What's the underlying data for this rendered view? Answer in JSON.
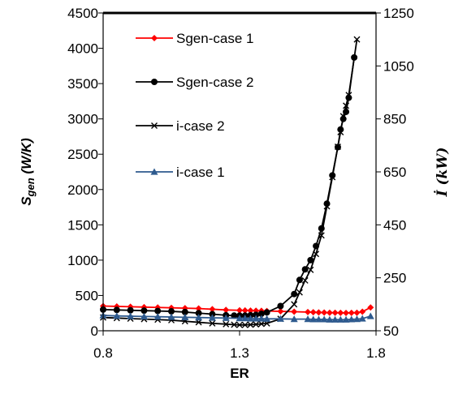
{
  "chart_data": {
    "type": "line",
    "x_axis": {
      "title": "ER",
      "range": [
        0.8,
        1.8
      ],
      "ticks": [
        0.8,
        1.3,
        1.8
      ],
      "tick_labels": [
        "0.8",
        "1.3",
        "1.8"
      ]
    },
    "y_axis_left": {
      "title_main": "S",
      "title_sub": "gen",
      "title_rest": " (W/K)",
      "range": [
        0,
        4500
      ],
      "ticks": [
        0,
        500,
        1000,
        1500,
        2000,
        2500,
        3000,
        3500,
        4000,
        4500
      ],
      "tick_labels": [
        "0",
        "500",
        "1000",
        "1500",
        "2000",
        "2500",
        "3000",
        "3500",
        "4000",
        "4500"
      ]
    },
    "y_axis_right": {
      "title_main": "İ",
      "title_rest": " (kW)",
      "range": [
        50,
        1250
      ],
      "ticks": [
        50,
        250,
        450,
        650,
        850,
        1050,
        1250
      ],
      "tick_labels": [
        "50",
        "250",
        "450",
        "650",
        "850",
        "1050",
        "1250"
      ]
    },
    "grid": false,
    "legend_position": "top-left inside",
    "series": [
      {
        "name": "Sgen-case 1",
        "axis": "left",
        "color": "#ff0000",
        "marker": "diamond",
        "x": [
          0.8,
          0.85,
          0.9,
          0.95,
          1.0,
          1.05,
          1.1,
          1.15,
          1.2,
          1.25,
          1.3,
          1.32,
          1.34,
          1.36,
          1.38,
          1.4,
          1.45,
          1.5,
          1.55,
          1.57,
          1.59,
          1.61,
          1.63,
          1.65,
          1.67,
          1.69,
          1.71,
          1.73,
          1.75,
          1.78
        ],
        "y": [
          350,
          345,
          340,
          335,
          330,
          325,
          320,
          315,
          305,
          295,
          290,
          288,
          286,
          284,
          282,
          280,
          275,
          270,
          265,
          262,
          260,
          258,
          256,
          255,
          254,
          253,
          254,
          256,
          270,
          330
        ]
      },
      {
        "name": "Sgen-case 2",
        "axis": "left",
        "color": "#000000",
        "marker": "circle",
        "x": [
          0.8,
          0.85,
          0.9,
          0.95,
          1.0,
          1.05,
          1.1,
          1.15,
          1.2,
          1.25,
          1.28,
          1.3,
          1.32,
          1.34,
          1.36,
          1.38,
          1.4,
          1.45,
          1.5,
          1.52,
          1.54,
          1.56,
          1.58,
          1.6,
          1.62,
          1.64,
          1.66,
          1.67,
          1.68,
          1.69,
          1.7,
          1.72
        ],
        "y": [
          300,
          295,
          290,
          285,
          280,
          275,
          265,
          250,
          235,
          220,
          215,
          215,
          215,
          220,
          225,
          240,
          260,
          350,
          520,
          720,
          870,
          1000,
          1200,
          1450,
          1800,
          2200,
          2600,
          2850,
          3000,
          3100,
          3300,
          3870
        ]
      },
      {
        "name": "i-case 2",
        "axis": "right",
        "color": "#000000",
        "marker": "x",
        "x": [
          0.8,
          0.85,
          0.9,
          0.95,
          1.0,
          1.05,
          1.1,
          1.15,
          1.2,
          1.25,
          1.28,
          1.3,
          1.32,
          1.34,
          1.36,
          1.38,
          1.4,
          1.45,
          1.5,
          1.52,
          1.54,
          1.56,
          1.58,
          1.6,
          1.62,
          1.64,
          1.66,
          1.67,
          1.68,
          1.69,
          1.7,
          1.73
        ],
        "y": [
          100,
          98,
          96,
          94,
          92,
          90,
          86,
          82,
          78,
          75,
          73,
          72,
          72,
          73,
          74,
          76,
          78,
          95,
          150,
          195,
          240,
          280,
          340,
          410,
          520,
          630,
          745,
          800,
          860,
          900,
          940,
          1150
        ]
      },
      {
        "name": "i-case 1",
        "axis": "right",
        "color": "#2e5a8e",
        "marker": "triangle",
        "x": [
          0.8,
          0.85,
          0.9,
          0.95,
          1.0,
          1.05,
          1.1,
          1.15,
          1.2,
          1.25,
          1.3,
          1.32,
          1.34,
          1.36,
          1.38,
          1.4,
          1.45,
          1.5,
          1.55,
          1.57,
          1.59,
          1.61,
          1.63,
          1.65,
          1.67,
          1.69,
          1.71,
          1.73,
          1.75,
          1.78
        ],
        "y": [
          108,
          106,
          105,
          104,
          103,
          102,
          101,
          100,
          99,
          98,
          97,
          97,
          96,
          96,
          96,
          95,
          95,
          94,
          94,
          93,
          93,
          93,
          92,
          92,
          92,
          92,
          93,
          94,
          96,
          105
        ]
      }
    ]
  }
}
